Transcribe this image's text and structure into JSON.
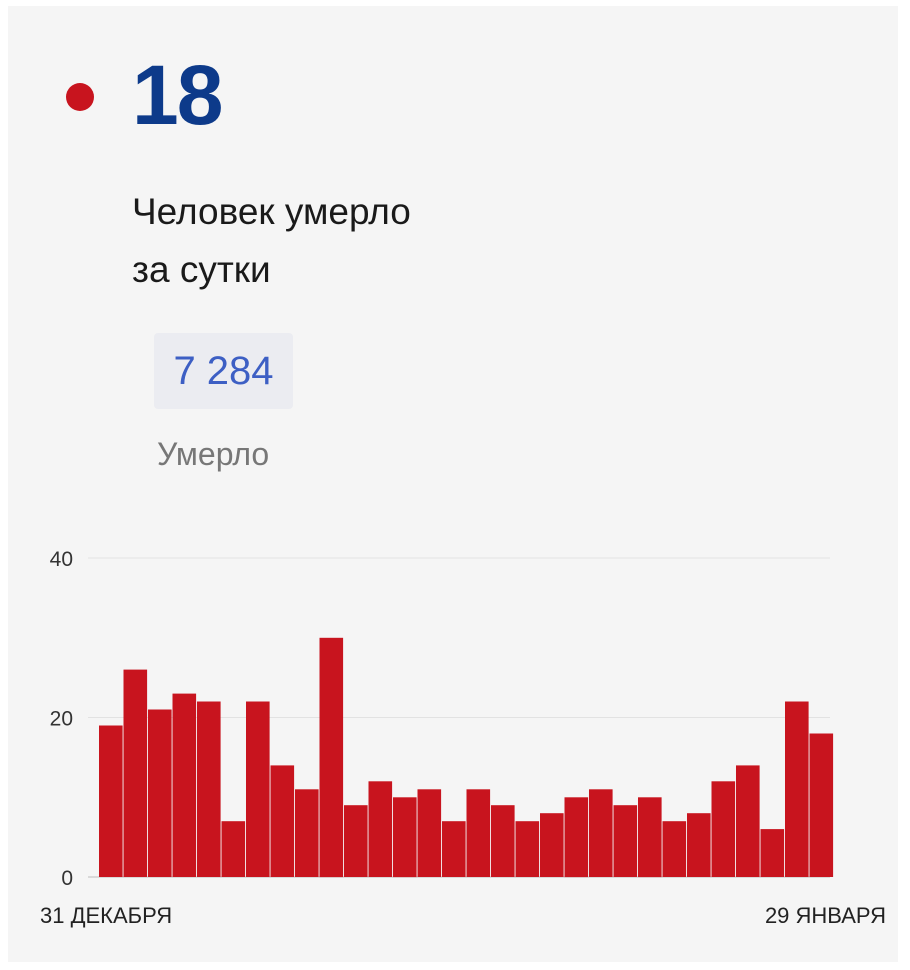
{
  "summary": {
    "daily_value": "18",
    "daily_label_line1": "Человек умерло",
    "daily_label_line2": "за сутки",
    "total_value": "7 284",
    "total_label": "Умерло"
  },
  "colors": {
    "dot": "#c8141e",
    "big_number": "#0d3a8a",
    "bar": "#c8141e",
    "total_value": "#3d5fc4"
  },
  "chart_data": {
    "type": "bar",
    "title": "",
    "xlabel": "",
    "ylabel": "",
    "ylim": [
      0,
      40
    ],
    "y_ticks": [
      0,
      20,
      40
    ],
    "grid": true,
    "x_labels_shown": [
      "31 ДЕКАБРЯ",
      "29 ЯНВАРЯ"
    ],
    "values": [
      19,
      26,
      21,
      23,
      22,
      7,
      22,
      14,
      11,
      30,
      9,
      12,
      10,
      11,
      7,
      11,
      9,
      7,
      8,
      10,
      11,
      9,
      10,
      7,
      8,
      12,
      14,
      6,
      22,
      18
    ]
  }
}
